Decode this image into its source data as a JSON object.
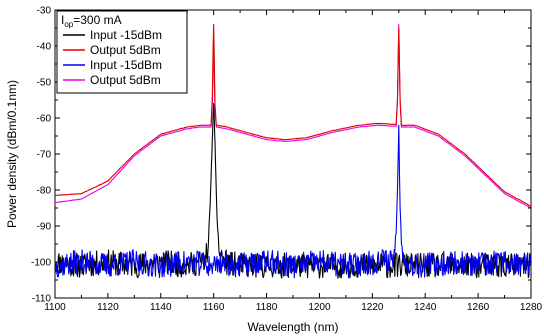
{
  "chart_data": {
    "type": "line",
    "xlabel": "Wavelength (nm)",
    "ylabel": "Power density (dBm/0.1nm)",
    "xlim": [
      1100,
      1280
    ],
    "ylim": [
      -110,
      -30
    ],
    "xticks": [
      1100,
      1120,
      1140,
      1160,
      1180,
      1200,
      1220,
      1240,
      1260,
      1280
    ],
    "yticks": [
      -110,
      -100,
      -90,
      -80,
      -70,
      -60,
      -50,
      -40,
      -30
    ],
    "grid": false,
    "legend": {
      "placement": "top-left",
      "annotation": {
        "main": "I",
        "sub": "op",
        "rest": "=300 mA"
      }
    },
    "series": [
      {
        "name": "Input -15dBm",
        "color": "#000000",
        "x": [
          1100,
          1110,
          1120,
          1130,
          1140,
          1150,
          1155,
          1157,
          1158,
          1158.7,
          1159.2,
          1159.6,
          1160.0,
          1160.4,
          1160.8,
          1161.3,
          1162,
          1164,
          1170,
          1180
        ],
        "y": [
          -100,
          -101,
          -100,
          -101,
          -100,
          -101,
          -100,
          -99,
          -95,
          -84,
          -72,
          -64,
          -56,
          -65,
          -75,
          -88,
          -97,
          -100,
          -101,
          -101
        ]
      },
      {
        "name": "Output 5dBm",
        "color": "#e00000",
        "x": [
          1100,
          1110,
          1120,
          1130,
          1140,
          1150,
          1155,
          1159,
          1159.5,
          1159.8,
          1160.0,
          1160.2,
          1160.5,
          1161,
          1165,
          1170,
          1180,
          1187,
          1195,
          1205,
          1215,
          1222,
          1229,
          1229.5,
          1229.8,
          1230,
          1230.2,
          1230.5,
          1231,
          1236,
          1245,
          1255,
          1265,
          1270,
          1280
        ],
        "y": [
          -81.5,
          -81,
          -77.5,
          -70,
          -64.5,
          -62.5,
          -62,
          -62,
          -54,
          -40,
          -34,
          -42,
          -56,
          -62,
          -62.5,
          -63.5,
          -65.5,
          -66,
          -65.5,
          -63.5,
          -62,
          -61.5,
          -61.8,
          -55,
          -43,
          -35,
          -43,
          -55,
          -62,
          -62,
          -64.5,
          -70,
          -77,
          -80.5,
          -84.5
        ]
      },
      {
        "name": "Input -15dBm",
        "color": "#0000ee",
        "x": [
          1100,
          1110,
          1120,
          1130,
          1140,
          1150,
          1160,
          1162,
          1170,
          1180,
          1190,
          1200,
          1210,
          1220,
          1228,
          1229,
          1229.5,
          1229.8,
          1230.0,
          1230.2,
          1230.5,
          1231,
          1233,
          1240,
          1250,
          1260,
          1270,
          1280
        ],
        "y": [
          -101,
          -100,
          -101,
          -100,
          -101,
          -100,
          -101,
          -100,
          -101,
          -100,
          -101,
          -100,
          -101,
          -100,
          -99,
          -92,
          -80,
          -70,
          -62,
          -72,
          -85,
          -95,
          -100,
          -101,
          -100,
          -101,
          -100,
          -101
        ]
      },
      {
        "name": "Output 5dBm",
        "color": "#ee00ee",
        "x": [
          1100,
          1110,
          1120,
          1130,
          1140,
          1150,
          1155,
          1159,
          1159.5,
          1159.8,
          1160.0,
          1160.2,
          1160.5,
          1161,
          1165,
          1170,
          1180,
          1187,
          1195,
          1205,
          1215,
          1222,
          1229,
          1229.5,
          1229.8,
          1230,
          1230.2,
          1230.5,
          1231,
          1236,
          1245,
          1255,
          1265,
          1270,
          1280
        ],
        "y": [
          -83.5,
          -82.5,
          -78.5,
          -70.5,
          -65,
          -63,
          -62.5,
          -62.5,
          -56,
          -46,
          -40,
          -47,
          -58,
          -62.5,
          -63,
          -64,
          -66,
          -66.5,
          -66,
          -64,
          -62.5,
          -62,
          -62.3,
          -55,
          -43,
          -34,
          -43,
          -55,
          -62.5,
          -62.5,
          -65,
          -70.5,
          -77.5,
          -81,
          -85
        ]
      }
    ]
  }
}
